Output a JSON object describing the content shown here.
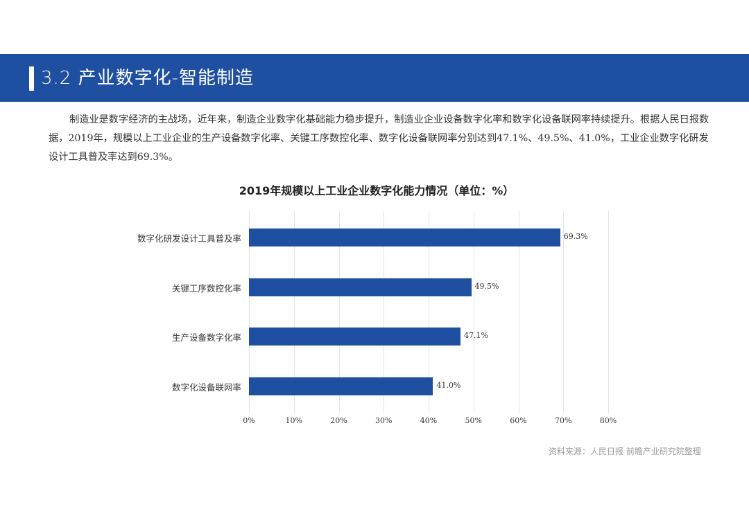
{
  "header": {
    "title": "3.2 产业数字化-智能制造",
    "band_color": "#1f4fa0"
  },
  "paragraph": {
    "text": "制造业是数字经济的主战场，近年来，制造企业数字化基础能力稳步提升，制造业企业设备数字化率和数字化设备联网率持续提升。根据人民日报数据，2019年，规模以上工业企业的生产设备数字化率、关键工序数控化率、数字化设备联网率分别达到47.1%、49.5%、41.0%，工业企业数字化研发设计工具普及率达到69.3%。"
  },
  "chart_data": {
    "type": "bar",
    "orientation": "horizontal",
    "title": "2019年规模以上工业企业数字化能力情况（单位：%）",
    "categories": [
      "数字化研发设计工具普及率",
      "关键工序数控化率",
      "生产设备数字化率",
      "数字化设备联网率"
    ],
    "values": [
      69.3,
      49.5,
      47.1,
      41.0
    ],
    "value_labels": [
      "69.3%",
      "49.5%",
      "47.1%",
      "41.0%"
    ],
    "xlabel": "",
    "ylabel": "",
    "xlim": [
      0,
      80
    ],
    "x_ticks": [
      "0%",
      "10%",
      "20%",
      "30%",
      "40%",
      "50%",
      "60%",
      "70%",
      "80%"
    ],
    "grid": true,
    "legend": null,
    "bar_color": "#1f4fa0"
  },
  "source": {
    "text": "资料来源：人民日报 前瞻产业研究院整理"
  }
}
